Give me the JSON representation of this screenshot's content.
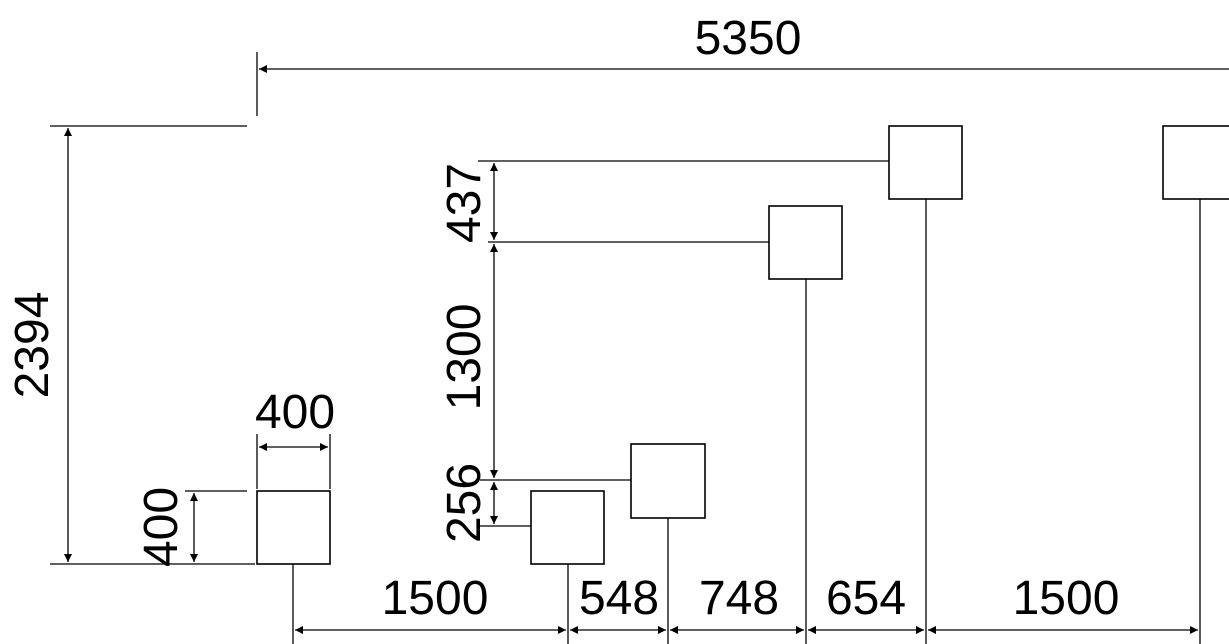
{
  "dimensions": {
    "overall_width": "5350",
    "overall_height": "2394",
    "square_width": "400",
    "square_height": "400",
    "rise_1": "256",
    "rise_2": "1300",
    "rise_3": "437",
    "spacing_1": "1500",
    "spacing_2": "548",
    "spacing_3": "748",
    "spacing_4": "654",
    "spacing_5": "1500"
  }
}
